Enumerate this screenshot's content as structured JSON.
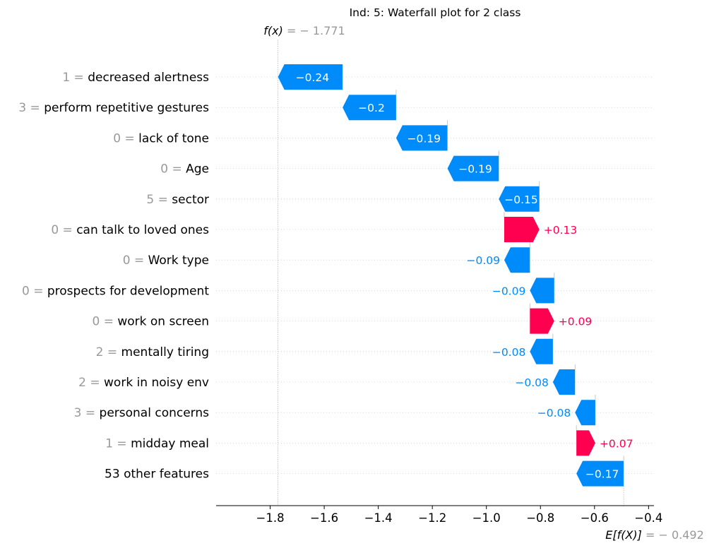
{
  "chart_data": {
    "type": "waterfall",
    "title": "Ind: 5: Waterfall plot for 2 class",
    "fx_label": "f(x)",
    "fx_value": "= − 1.771",
    "efx_label": "E[f(X)]",
    "efx_value": "= − 0.492",
    "fx": -1.771,
    "base_value": -0.492,
    "xlim": [
      -2.0,
      -0.38
    ],
    "xticks": [
      -1.8,
      -1.6,
      -1.4,
      -1.2,
      -1.0,
      -0.8,
      -0.6,
      -0.4
    ],
    "xtick_labels": [
      "−1.8",
      "−1.6",
      "−1.4",
      "−1.2",
      "−1.0",
      "−0.8",
      "−0.6",
      "−0.4"
    ],
    "colors": {
      "positive": "#ff0051",
      "negative": "#008bfb",
      "value_gray": "#999999",
      "text": "#000000"
    },
    "features": [
      {
        "value": "1 =",
        "name": "decreased alertness",
        "start": -1.532,
        "end": -1.771,
        "shap": -0.24,
        "label": "−0.24",
        "label_inside": true
      },
      {
        "value": "3 =",
        "name": "perform repetitive gestures",
        "start": -1.334,
        "end": -1.532,
        "shap": -0.2,
        "label": "−0.2",
        "label_inside": true
      },
      {
        "value": "0 =",
        "name": "lack of tone",
        "start": -1.144,
        "end": -1.334,
        "shap": -0.19,
        "label": "−0.19",
        "label_inside": true
      },
      {
        "value": "0 =",
        "name": "Age",
        "start": -0.954,
        "end": -1.144,
        "shap": -0.19,
        "label": "−0.19",
        "label_inside": true
      },
      {
        "value": "5 =",
        "name": "sector",
        "start": -0.804,
        "end": -0.954,
        "shap": -0.15,
        "label": "−0.15",
        "label_inside": true
      },
      {
        "value": "0 =",
        "name": "can talk to loved ones",
        "start": -0.934,
        "end": -0.804,
        "shap": 0.13,
        "label": "+0.13",
        "label_inside": false
      },
      {
        "value": "0 =",
        "name": "Work type",
        "start": -0.839,
        "end": -0.934,
        "shap": -0.09,
        "label": "−0.09",
        "label_inside": false
      },
      {
        "value": "0 =",
        "name": "prospects for development",
        "start": -0.749,
        "end": -0.839,
        "shap": -0.09,
        "label": "−0.09",
        "label_inside": false
      },
      {
        "value": "0 =",
        "name": "work on screen",
        "start": -0.839,
        "end": -0.749,
        "shap": 0.09,
        "label": "+0.09",
        "label_inside": false
      },
      {
        "value": "2 =",
        "name": "mentally tiring",
        "start": -0.754,
        "end": -0.839,
        "shap": -0.08,
        "label": "−0.08",
        "label_inside": false
      },
      {
        "value": "2 =",
        "name": "work in noisy env",
        "start": -0.672,
        "end": -0.754,
        "shap": -0.08,
        "label": "−0.08",
        "label_inside": false
      },
      {
        "value": "3 =",
        "name": "personal concerns",
        "start": -0.597,
        "end": -0.672,
        "shap": -0.08,
        "label": "−0.08",
        "label_inside": false
      },
      {
        "value": "1 =",
        "name": "midday meal",
        "start": -0.667,
        "end": -0.597,
        "shap": 0.07,
        "label": "+0.07",
        "label_inside": false
      },
      {
        "value": "",
        "name": "53 other features",
        "start": -0.492,
        "end": -0.667,
        "shap": -0.17,
        "label": "−0.17",
        "label_inside": true
      }
    ]
  }
}
